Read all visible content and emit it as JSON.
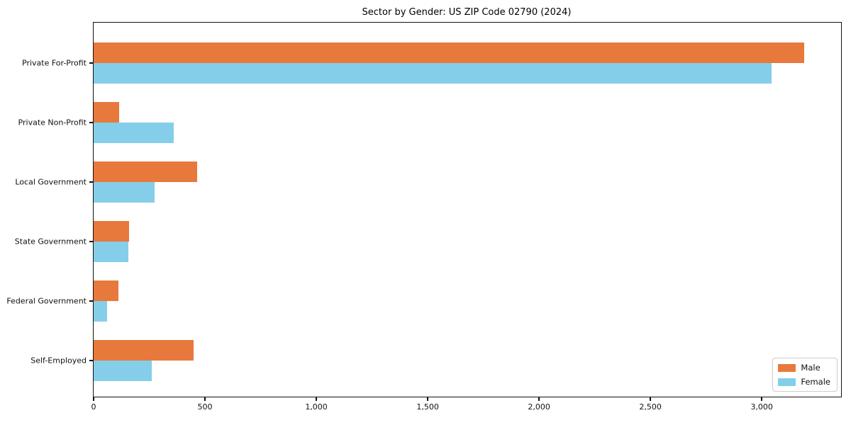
{
  "title": "Sector by Gender: US ZIP Code 02790 (2024)",
  "chart_data": {
    "type": "bar",
    "orientation": "horizontal",
    "title": "Sector by Gender: US ZIP Code 02790 (2024)",
    "xlabel": "",
    "ylabel": "",
    "categories": [
      "Private For-Profit",
      "Private Non-Profit",
      "Local Government",
      "State Government",
      "Federal Government",
      "Self-Employed"
    ],
    "series": [
      {
        "name": "Male",
        "color": "#E7793C",
        "values": [
          3190,
          115,
          465,
          160,
          110,
          450
        ]
      },
      {
        "name": "Female",
        "color": "#85CEE9",
        "values": [
          3045,
          360,
          275,
          155,
          60,
          260
        ]
      }
    ],
    "xlim": [
      0,
      3356
    ],
    "x_ticks": [
      0,
      500,
      1000,
      1500,
      2000,
      2500,
      3000
    ],
    "x_tick_labels": [
      "0",
      "500",
      "1,000",
      "1,500",
      "2,000",
      "2,500",
      "3,000"
    ],
    "grid": false,
    "legend_position": "lower right",
    "background_color": "#ffffff",
    "spine_color": "#111111"
  },
  "legend": {
    "items": [
      {
        "label": "Male",
        "color": "#E7793C",
        "swatch_icon": "male-series-swatch"
      },
      {
        "label": "Female",
        "color": "#85CEE9",
        "swatch_icon": "female-series-swatch"
      }
    ]
  }
}
